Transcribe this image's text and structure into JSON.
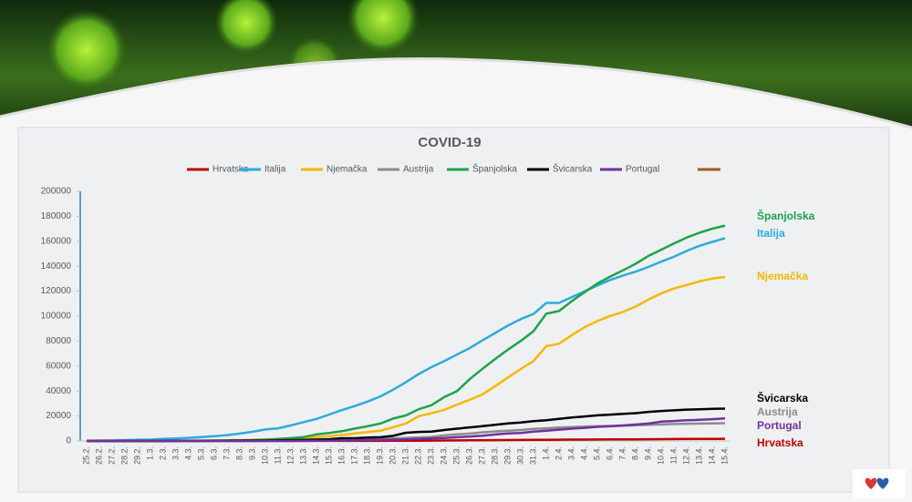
{
  "chart_data": {
    "type": "line",
    "title": "COVID-19",
    "categories": [
      "25.2.",
      "26.2.",
      "27.2.",
      "28.2.",
      "29.2.",
      "1.3.",
      "2.3.",
      "3.3.",
      "4.3.",
      "5.3.",
      "6.3.",
      "7.3.",
      "8.3.",
      "9.3.",
      "10.3.",
      "11.3.",
      "12.3.",
      "13.3.",
      "14.3.",
      "15.3.",
      "16.3.",
      "17.3.",
      "18.3.",
      "19.3.",
      "20.3.",
      "21.3.",
      "22.3.",
      "23.3.",
      "24.3.",
      "25.3.",
      "26.3.",
      "27.3.",
      "28.3.",
      "29.3.",
      "30.3.",
      "31.3.",
      "1.4.",
      "2.4.",
      "3.4.",
      "4.4.",
      "5.4.",
      "6.4.",
      "7.4.",
      "8.4.",
      "9.4.",
      "10.4.",
      "11.4.",
      "12.4.",
      "13.4.",
      "14.4.",
      "15.4."
    ],
    "series": [
      {
        "name": "Hrvatska",
        "color": "#c00000",
        "values": [
          0,
          0,
          0,
          1,
          3,
          5,
          7,
          7,
          9,
          10,
          11,
          12,
          12,
          12,
          13,
          16,
          19,
          32,
          38,
          49,
          57,
          65,
          81,
          105,
          128,
          206,
          254,
          315,
          382,
          442,
          495,
          586,
          657,
          713,
          790,
          867,
          963,
          1011,
          1079,
          1126,
          1182,
          1222,
          1282,
          1343,
          1407,
          1495,
          1534,
          1600,
          1650,
          1704,
          1741
        ]
      },
      {
        "name": "Italija",
        "color": "#2eaadc",
        "values": [
          229,
          322,
          400,
          650,
          888,
          1128,
          1694,
          2036,
          2502,
          3089,
          3858,
          4636,
          5883,
          7375,
          9172,
          10149,
          12462,
          15113,
          17660,
          21157,
          24747,
          27980,
          31506,
          35713,
          41035,
          47021,
          53578,
          59138,
          63927,
          69176,
          74386,
          80589,
          86498,
          92472,
          97689,
          101739,
          110574,
          110574,
          115242,
          119827,
          124632,
          128948,
          132547,
          135586,
          139422,
          143626,
          147577,
          152271,
          156363,
          159516,
          162488
        ]
      },
      {
        "name": "Njemačka",
        "color": "#f5b800",
        "values": [
          16,
          18,
          21,
          26,
          53,
          66,
          117,
          150,
          188,
          240,
          349,
          534,
          684,
          847,
          1112,
          1460,
          1884,
          2369,
          3062,
          3795,
          4838,
          6012,
          7156,
          8198,
          10999,
          13957,
          19848,
          22213,
          24873,
          29056,
          32986,
          37323,
          43938,
          50871,
          57695,
          64000,
          76000,
          77872,
          84794,
          91159,
          96092,
          100123,
          103374,
          107663,
          113296,
          118181,
          122171,
          124908,
          127854,
          130072,
          131359
        ]
      },
      {
        "name": "Austrija",
        "color": "#8c8c8c",
        "values": [
          2,
          2,
          2,
          3,
          5,
          10,
          14,
          18,
          21,
          29,
          41,
          55,
          79,
          104,
          131,
          182,
          246,
          302,
          504,
          655,
          860,
          1018,
          1332,
          1646,
          2013,
          2388,
          2814,
          3244,
          4486,
          5282,
          5888,
          6909,
          7697,
          8271,
          8788,
          9618,
          10180,
          10711,
          11129,
          11524,
          11781,
          12051,
          12297,
          12639,
          12942,
          13244,
          13555,
          13806,
          13945,
          14041,
          14226
        ]
      },
      {
        "name": "Španjolska",
        "color": "#1fa34a",
        "values": [
          2,
          6,
          13,
          15,
          32,
          45,
          84,
          120,
          165,
          222,
          259,
          400,
          500,
          673,
          1073,
          1695,
          2277,
          3146,
          5232,
          6391,
          7798,
          9942,
          11748,
          13910,
          17963,
          20410,
          25374,
          28603,
          35136,
          39885,
          49515,
          57786,
          65719,
          73235,
          80110,
          87956,
          102000,
          104118,
          112065,
          119199,
          126168,
          131646,
          136675,
          141942,
          148220,
          153222,
          158273,
          163027,
          166831,
          170099,
          172541
        ]
      },
      {
        "name": "Švicarska",
        "color": "#000000",
        "values": [
          1,
          1,
          1,
          8,
          18,
          24,
          30,
          37,
          56,
          90,
          114,
          214,
          268,
          337,
          374,
          491,
          645,
          858,
          1125,
          1359,
          2200,
          2200,
          2700,
          3028,
          4075,
          6575,
          7245,
          7474,
          8795,
          9877,
          10897,
          11811,
          12928,
          14076,
          14829,
          15922,
          16605,
          17768,
          18827,
          19606,
          20505,
          21100,
          21657,
          22253,
          23280,
          24051,
          24551,
          25107,
          25415,
          25688,
          25936
        ]
      },
      {
        "name": "Portugal",
        "color": "#7030a0",
        "values": [
          0,
          0,
          0,
          0,
          0,
          0,
          2,
          4,
          5,
          8,
          13,
          21,
          30,
          30,
          41,
          59,
          78,
          112,
          169,
          245,
          331,
          448,
          642,
          785,
          1020,
          1280,
          1600,
          2060,
          2362,
          2995,
          3544,
          4268,
          5170,
          5962,
          6408,
          7443,
          8251,
          9034,
          9886,
          10524,
          11278,
          11730,
          12442,
          13141,
          13956,
          15472,
          15987,
          16585,
          16934,
          17448,
          18091
        ]
      }
    ],
    "ylim": [
      0,
      200000
    ],
    "yticks": [
      0,
      20000,
      40000,
      60000,
      80000,
      100000,
      120000,
      140000,
      160000,
      180000,
      200000
    ],
    "grid": false
  }
}
